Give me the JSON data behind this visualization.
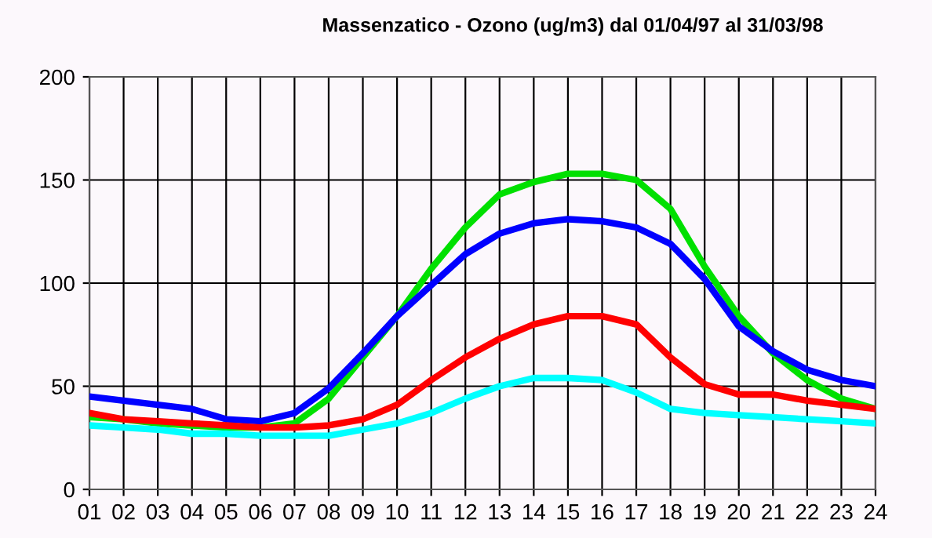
{
  "chart_data": {
    "type": "line",
    "title": "Massenzatico - Ozono (ug/m3) dal 01/04/97 al 31/03/98",
    "x": [
      1,
      2,
      3,
      4,
      5,
      6,
      7,
      8,
      9,
      10,
      11,
      12,
      13,
      14,
      15,
      16,
      17,
      18,
      19,
      20,
      21,
      22,
      23,
      24
    ],
    "xlim": [
      1,
      24
    ],
    "xticks": [
      {
        "value": 1,
        "label": "01"
      },
      {
        "value": 2,
        "label": "02"
      },
      {
        "value": 3,
        "label": "03"
      },
      {
        "value": 4,
        "label": "04"
      },
      {
        "value": 5,
        "label": "05"
      },
      {
        "value": 6,
        "label": "06"
      },
      {
        "value": 7,
        "label": "07"
      },
      {
        "value": 8,
        "label": "08"
      },
      {
        "value": 9,
        "label": "09"
      },
      10,
      11,
      12,
      13,
      14,
      15,
      16,
      17,
      18,
      19,
      20,
      21,
      22,
      23,
      24
    ],
    "ylim": [
      0,
      200
    ],
    "yticks": [
      0,
      50,
      100,
      150,
      200
    ],
    "grid": true,
    "marker": "none",
    "line_style": "solid",
    "series": [
      {
        "color": "#00e000",
        "values": [
          35,
          34,
          32,
          31,
          30,
          30,
          32,
          44,
          64,
          84,
          107,
          127,
          143,
          149,
          153,
          153,
          150,
          136,
          108,
          84,
          66,
          53,
          44,
          39
        ]
      },
      {
        "color": "#0000ff",
        "values": [
          45,
          43,
          41,
          39,
          34,
          33,
          37,
          49,
          66,
          84,
          99,
          114,
          124,
          129,
          131,
          130,
          127,
          119,
          102,
          79,
          67,
          58,
          53,
          50
        ]
      },
      {
        "color": "#ff0000",
        "values": [
          37,
          34,
          33,
          32,
          31,
          30,
          30,
          31,
          34,
          41,
          53,
          64,
          73,
          80,
          84,
          84,
          80,
          64,
          51,
          46,
          46,
          43,
          41,
          39
        ]
      },
      {
        "color": "#00ffff",
        "values": [
          31,
          30,
          29,
          27,
          27,
          26,
          26,
          26,
          29,
          32,
          37,
          44,
          50,
          54,
          54,
          53,
          47,
          39,
          37,
          36,
          35,
          34,
          33,
          32
        ]
      }
    ]
  }
}
